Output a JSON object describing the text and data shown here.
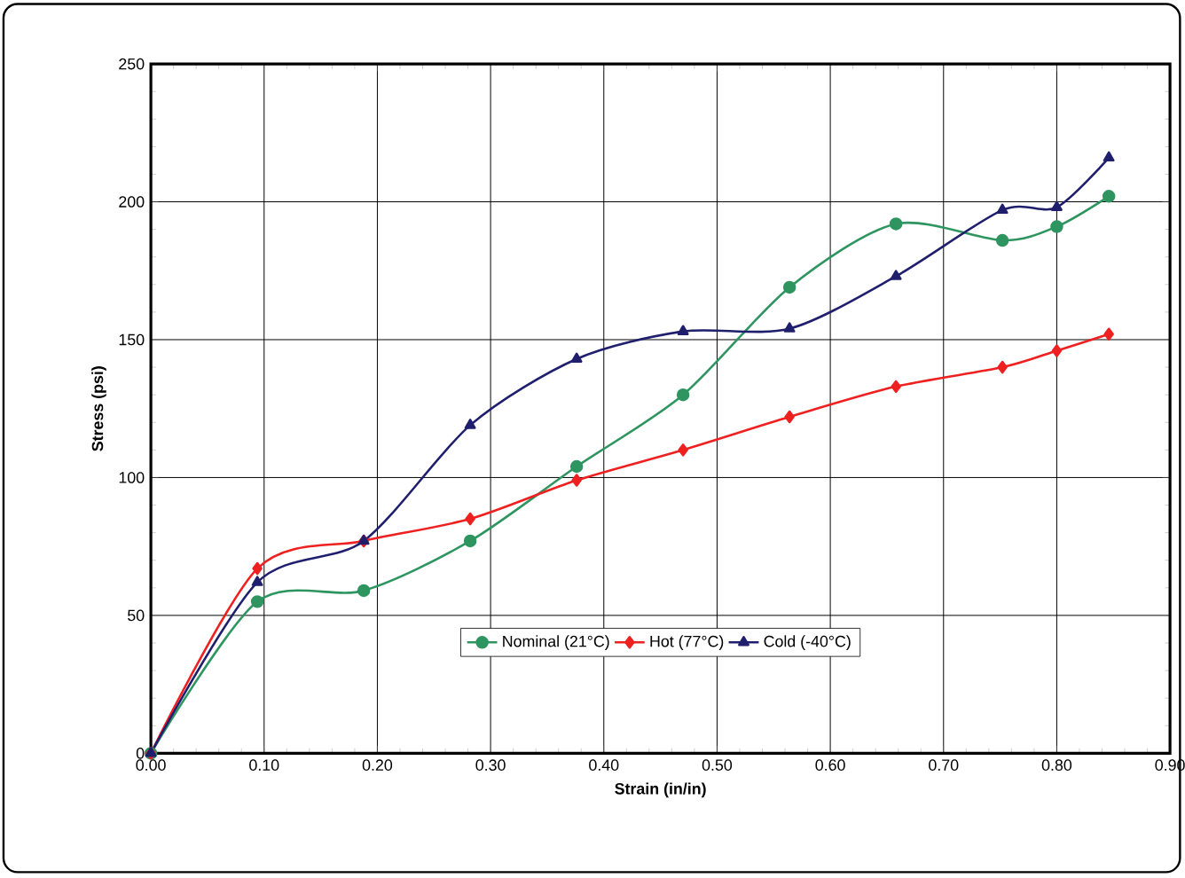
{
  "chart_data": {
    "type": "line",
    "xlabel": "Strain (in/in)",
    "ylabel": "Stress (psi)",
    "x": [
      0,
      0.094,
      0.188,
      0.282,
      0.376,
      0.47,
      0.564,
      0.658,
      0.752,
      0.8,
      0.846
    ],
    "series": [
      {
        "name": "Nominal (21°C)",
        "color": "#2e9560",
        "marker": "circle",
        "values": [
          0,
          55,
          59,
          77,
          104,
          130,
          169,
          192,
          186,
          191,
          202
        ]
      },
      {
        "name": "Hot (77°C)",
        "color": "#ee2020",
        "marker": "diamond",
        "values": [
          0,
          67,
          77,
          85,
          99,
          110,
          122,
          133,
          140,
          146,
          152
        ]
      },
      {
        "name": "Cold (-40°C)",
        "color": "#1f1f6e",
        "marker": "triangle",
        "values": [
          0,
          62,
          77,
          119,
          143,
          153,
          154,
          173,
          197,
          198,
          216
        ]
      }
    ],
    "xlim": [
      0,
      0.9
    ],
    "xticks": [
      {
        "value": 0,
        "label": "0.00"
      },
      {
        "value": 0.1,
        "label": "0.10"
      },
      {
        "value": 0.2,
        "label": "0.20"
      },
      {
        "value": 0.3,
        "label": "0.30"
      },
      {
        "value": 0.4,
        "label": "0.40"
      },
      {
        "value": 0.5,
        "label": "0.50"
      },
      {
        "value": 0.6,
        "label": "0.60"
      },
      {
        "value": 0.7,
        "label": "0.70"
      },
      {
        "value": 0.8,
        "label": "0.80"
      },
      {
        "value": 0.9,
        "label": "0.90"
      }
    ],
    "ylim": [
      0,
      250
    ],
    "yticks": [
      0,
      50,
      100,
      150,
      200,
      250
    ],
    "grid": true,
    "legend": "bottom",
    "line_style": "solid"
  }
}
